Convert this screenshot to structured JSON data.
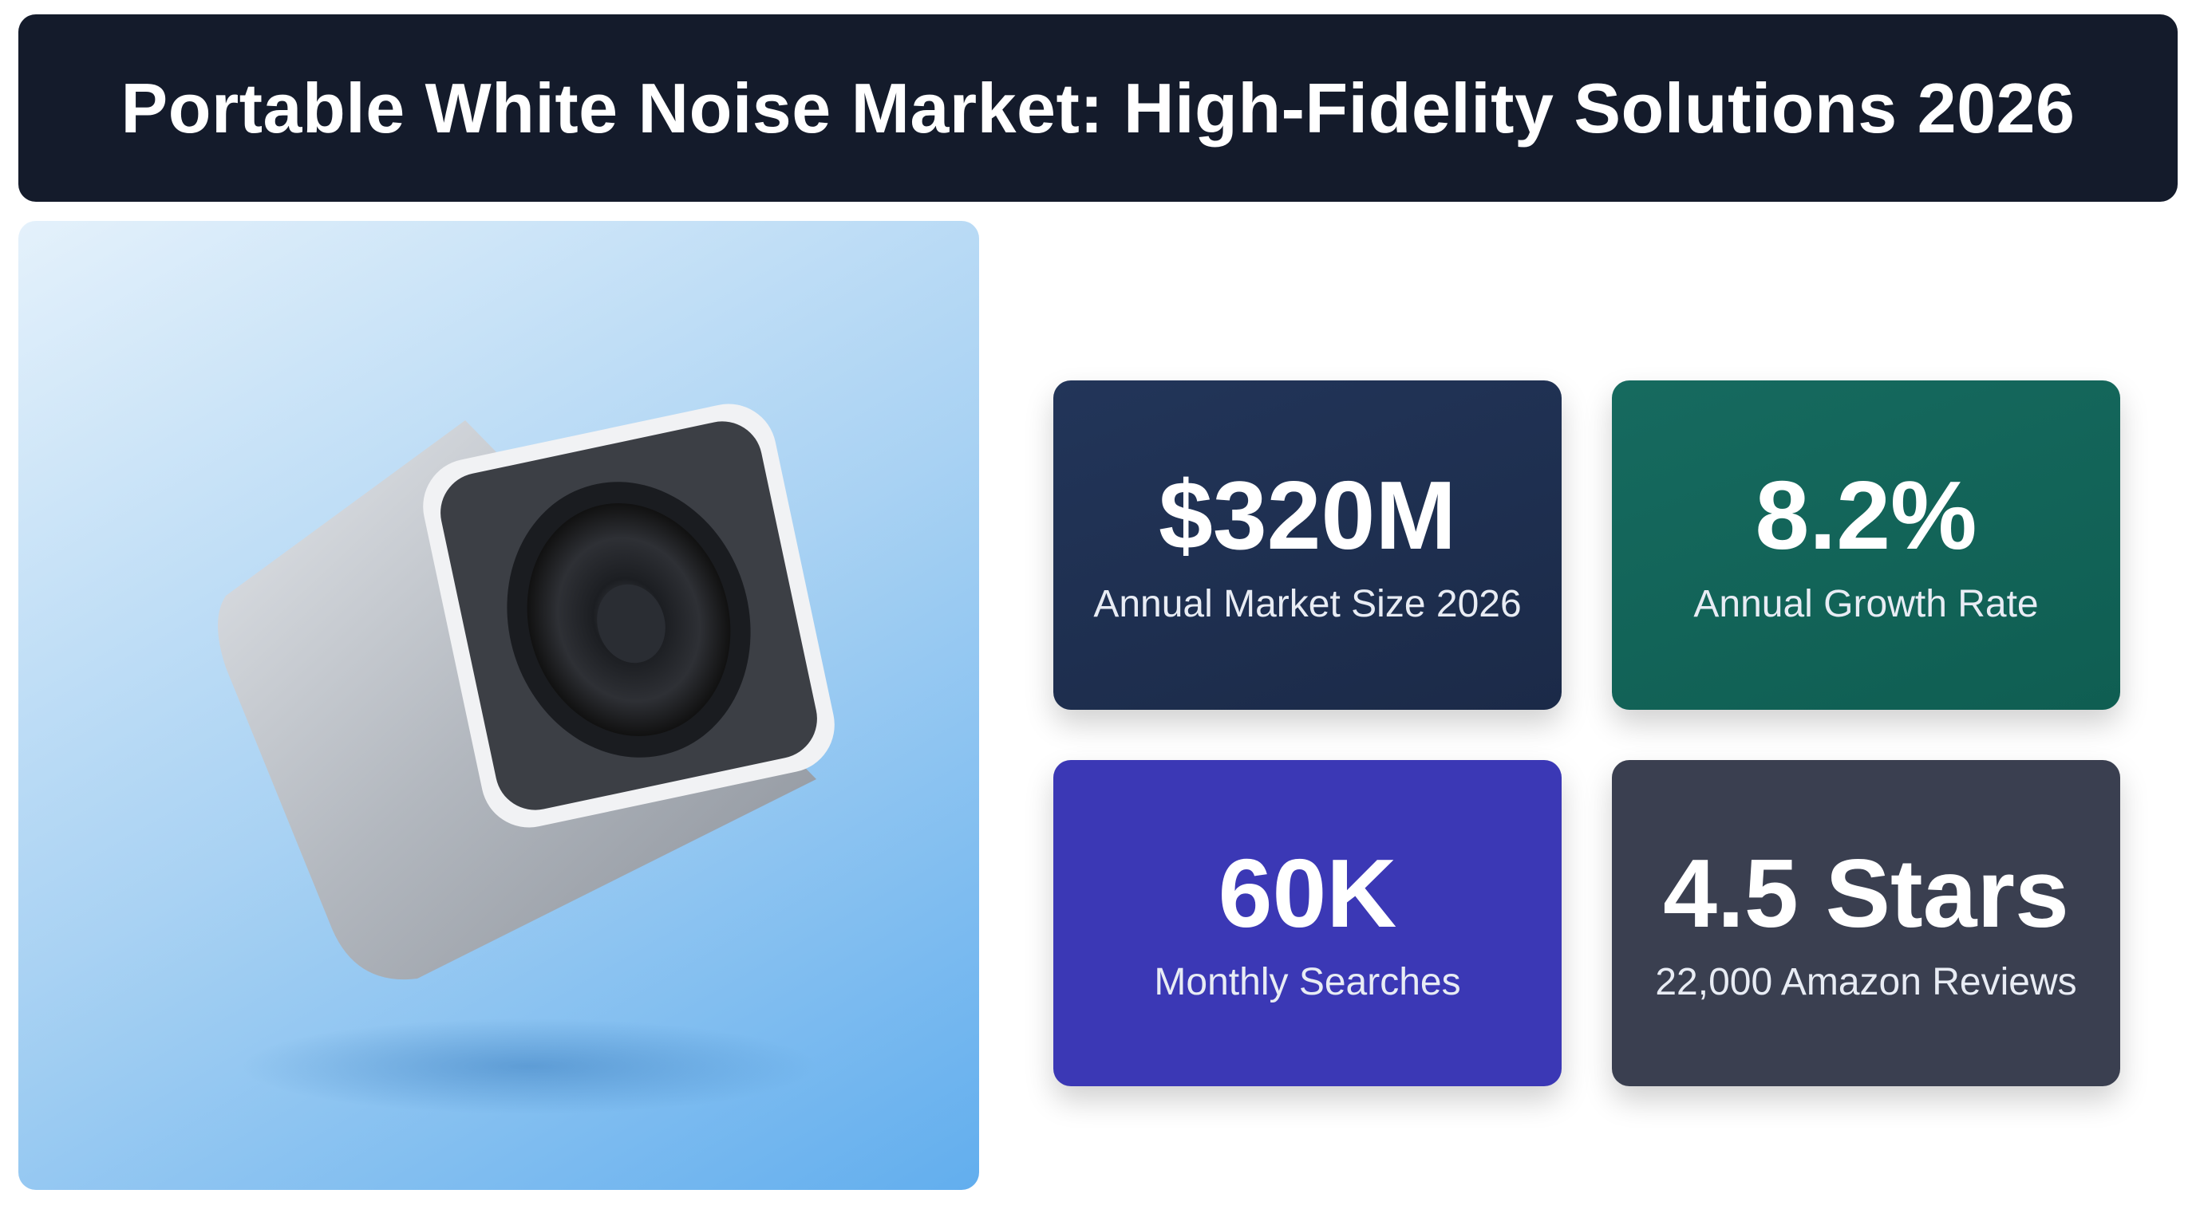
{
  "header": {
    "title": "Portable White Noise Market: High-Fidelity Solutions 2026"
  },
  "stats": [
    {
      "value": "$320M",
      "label": "Annual Market Size 2026"
    },
    {
      "value": "8.2%",
      "label": "Annual Growth Rate"
    },
    {
      "value": "60K",
      "label": "Monthly Searches"
    },
    {
      "value": "4.5 Stars",
      "label": "22,000 Amazon Reviews"
    }
  ]
}
